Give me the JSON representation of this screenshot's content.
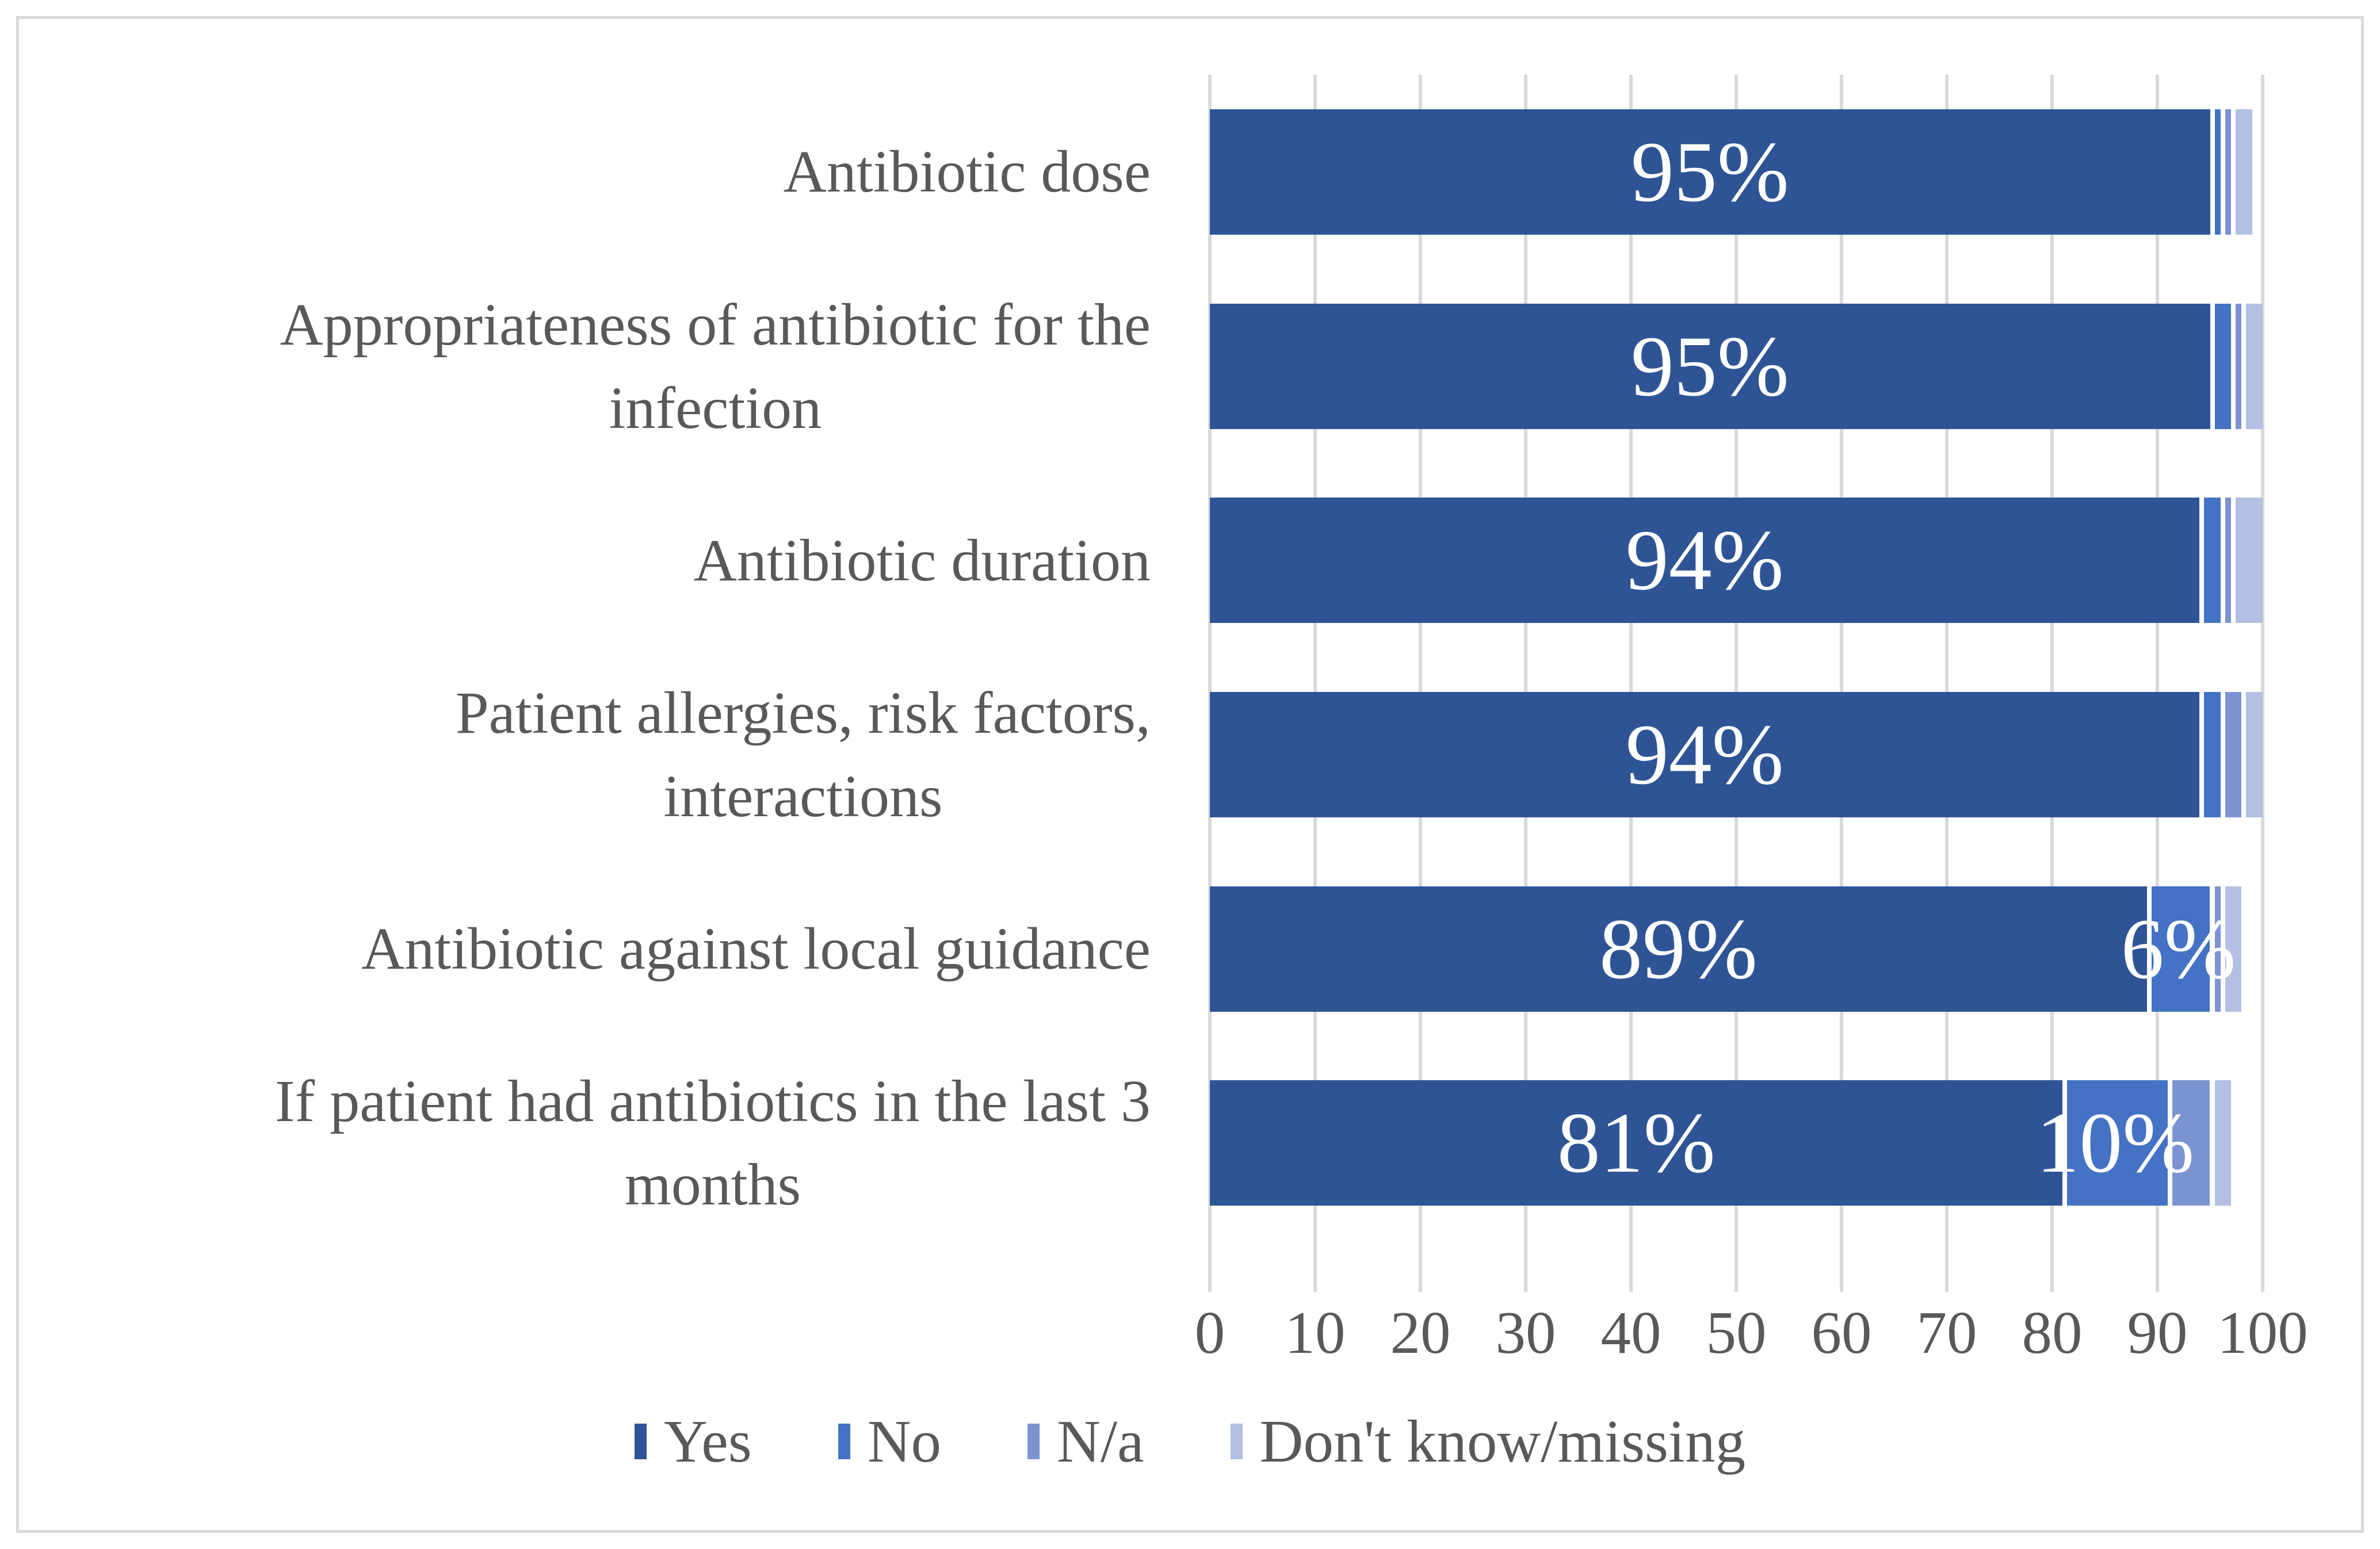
{
  "figure": {
    "background_color": "#FFFFFF",
    "frame_color": "#D9D9D9",
    "gridline_color": "#D9D9D9",
    "text_color": "#595959",
    "bar_label_color": "#FFFFFF"
  },
  "chart_data": {
    "type": "bar",
    "orientation": "horizontal",
    "stacked": true,
    "title": "",
    "xlabel": "",
    "ylabel": "",
    "grid": true,
    "categories": [
      "Antibiotic dose",
      "Appropriateness of antibiotic for the infection",
      "Antibiotic duration",
      "Patient allergies, risk factors, interactions",
      "Antibiotic against local guidance",
      "If patient had antibiotics in the last 3 months"
    ],
    "category_lines": [
      [
        "Antibiotic dose"
      ],
      [
        "Appropriateness of antibiotic for the",
        "infection"
      ],
      [
        "Antibiotic duration"
      ],
      [
        "Patient allergies, risk factors,",
        "interactions"
      ],
      [
        "Antibiotic against local guidance"
      ],
      [
        "If patient had antibiotics in the last 3",
        "months"
      ]
    ],
    "series": [
      {
        "name": "Yes",
        "color": "#2F5496",
        "values": [
          95,
          95,
          94,
          94,
          89,
          81
        ],
        "labels": [
          "95%",
          "95%",
          "94%",
          "94%",
          "89%",
          "81%"
        ]
      },
      {
        "name": "No",
        "color": "#4472C4",
        "values": [
          1,
          2,
          2,
          2,
          6,
          10
        ],
        "labels": [
          "",
          "",
          "",
          "",
          "6%",
          "10%"
        ]
      },
      {
        "name": "N/a",
        "color": "#7B93D1",
        "values": [
          1,
          1,
          1,
          2,
          1,
          4
        ],
        "labels": [
          "",
          "",
          "",
          "",
          "",
          ""
        ]
      },
      {
        "name": "Don't know/missing",
        "color": "#B3BFE3",
        "values": [
          2,
          2,
          3,
          2,
          2,
          2
        ],
        "labels": [
          "",
          "",
          "",
          "",
          "",
          ""
        ]
      }
    ],
    "x_axis": {
      "min": 0,
      "max": 100,
      "tick_step": 10,
      "tick_labels": [
        "0",
        "10",
        "20",
        "30",
        "40",
        "50",
        "60",
        "70",
        "80",
        "90",
        "100"
      ]
    },
    "legend": {
      "position": "bottom",
      "entries": [
        "Yes",
        "No",
        "N/a",
        "Don't know/missing"
      ]
    }
  }
}
